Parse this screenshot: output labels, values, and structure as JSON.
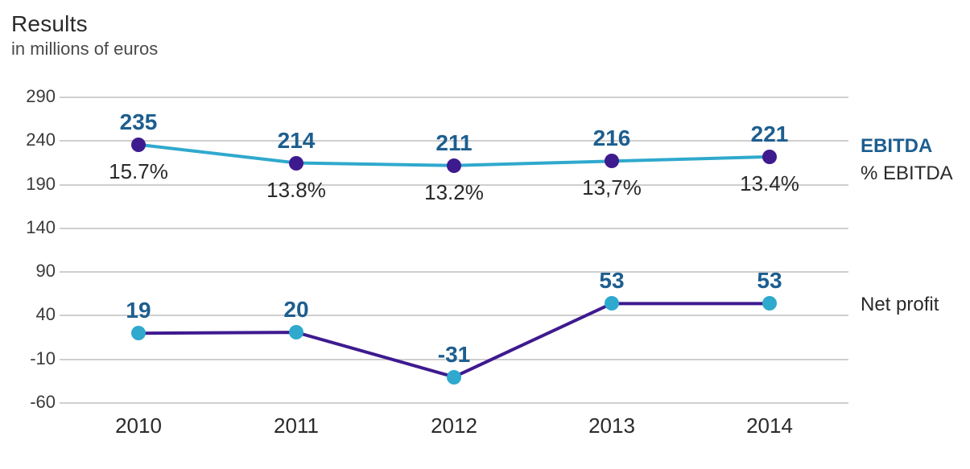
{
  "title": "Results",
  "subtitle": "in millions of euros",
  "title_fontsize": 28,
  "subtitle_fontsize": 22,
  "background_color": "#ffffff",
  "grid_color": "#cfcfcf",
  "chart": {
    "type": "line",
    "years": [
      "2010",
      "2011",
      "2012",
      "2013",
      "2014"
    ],
    "ylim": [
      -60,
      290
    ],
    "ytick_step": 50,
    "yticks": [
      290,
      240,
      190,
      140,
      90,
      40,
      -10,
      -60
    ],
    "xlabel_fontsize": 26,
    "ylabel_fontsize": 22,
    "ebitda": {
      "label": "EBITDA",
      "values": [
        235,
        214,
        211,
        216,
        221
      ],
      "value_labels": [
        "235",
        "214",
        "211",
        "216",
        "221"
      ],
      "pct_labels": [
        "15.7%",
        "13.8%",
        "13.2%",
        "13,7%",
        "13.4%"
      ],
      "line_color": "#2fa9cd",
      "line_width": 4,
      "marker_color": "#3e1a8f",
      "marker_size": 18,
      "value_color": "#1d5e8f",
      "value_fontsize": 28,
      "pct_fontsize": 26,
      "pct_color": "#2a2a2a",
      "pct_legend_label": "% EBITDA"
    },
    "netprofit": {
      "label": "Net profit",
      "values": [
        19,
        20,
        -31,
        53,
        53
      ],
      "value_labels": [
        "19",
        "20",
        "-31",
        "53",
        "53"
      ],
      "line_color": "#3e1a8f",
      "line_width": 4,
      "marker_color": "#2fa9cd",
      "marker_size": 18,
      "value_color": "#1d5e8f",
      "value_fontsize": 28
    }
  },
  "legend": {
    "ebitda_label": "EBITDA",
    "ebitda_color": "#1d5e8f",
    "pct_label": "% EBITDA",
    "pct_color": "#2a2a2a",
    "netprofit_label": "Net profit",
    "netprofit_color": "#2a2a2a",
    "fontsize": 24
  }
}
